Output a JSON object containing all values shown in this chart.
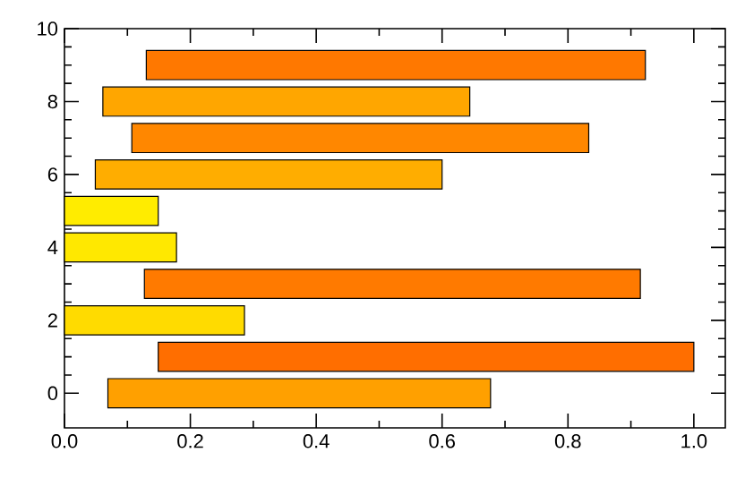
{
  "chart_data": {
    "type": "bar",
    "orientation": "horizontal",
    "x": [
      0,
      1,
      2,
      3,
      4,
      5,
      6,
      7,
      8,
      9
    ],
    "base": [
      0.069,
      0.149,
      0,
      0.127,
      0,
      0,
      0.049,
      0.107,
      0.061,
      0.13
    ],
    "values": [
      0.608,
      0.851,
      0.286,
      0.788,
      0.178,
      0.149,
      0.551,
      0.726,
      0.583,
      0.793
    ],
    "colors": [
      "#ffa000",
      "#ff6e00",
      "#ffdb00",
      "#ff7a00",
      "#ffe800",
      "#ffec00",
      "#ffad00",
      "#ff8700",
      "#ffa600",
      "#ff7800"
    ],
    "xlim": [
      0,
      1.05
    ],
    "xticks": [
      {
        "value": 0,
        "label": "0.0"
      },
      0.2,
      0.4,
      0.6,
      0.8,
      {
        "value": 1,
        "label": "1.0"
      }
    ],
    "ylim": [
      -0.95,
      10
    ],
    "yticks": [
      0,
      2,
      4,
      6,
      8,
      10
    ]
  }
}
